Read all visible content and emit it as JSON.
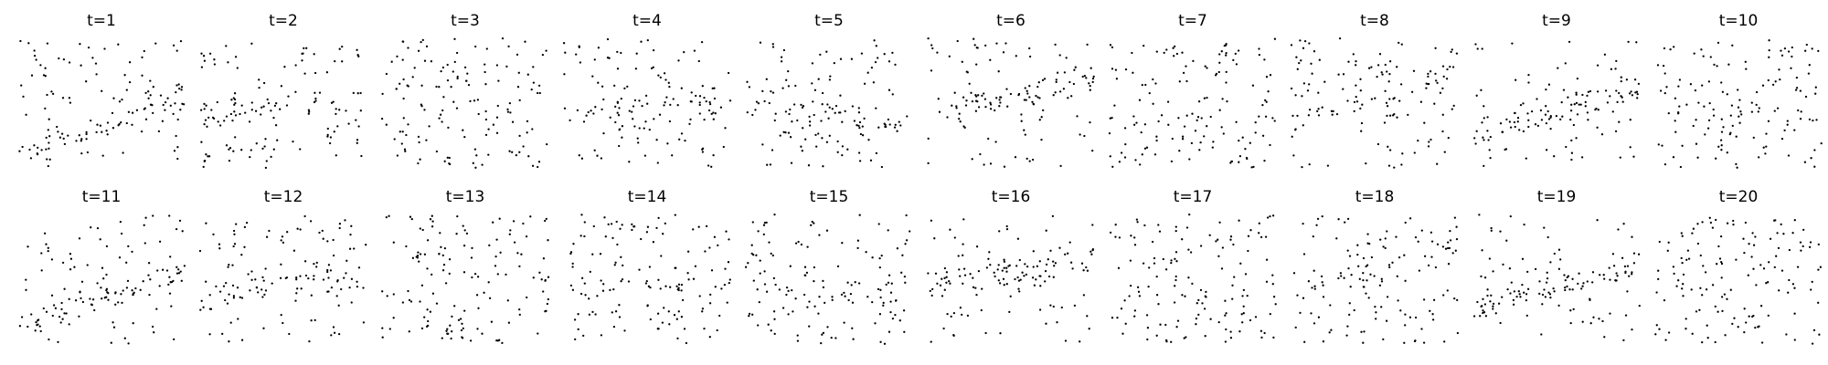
{
  "chart_data": {
    "type": "scatter",
    "grid": false,
    "axes_visible": false,
    "layout": {
      "rows": 2,
      "cols": 10
    },
    "marker_color": "#000000",
    "points_per_panel": 140,
    "xlim": [
      0,
      1
    ],
    "ylim": [
      0,
      1
    ],
    "panels": [
      {
        "title": "t=1"
      },
      {
        "title": "t=2"
      },
      {
        "title": "t=3"
      },
      {
        "title": "t=4"
      },
      {
        "title": "t=5"
      },
      {
        "title": "t=6"
      },
      {
        "title": "t=7"
      },
      {
        "title": "t=8"
      },
      {
        "title": "t=9"
      },
      {
        "title": "t=10"
      },
      {
        "title": "t=11"
      },
      {
        "title": "t=12"
      },
      {
        "title": "t=13"
      },
      {
        "title": "t=14"
      },
      {
        "title": "t=15"
      },
      {
        "title": "t=16"
      },
      {
        "title": "t=17"
      },
      {
        "title": "t=18"
      },
      {
        "title": "t=19"
      },
      {
        "title": "t=20"
      }
    ]
  }
}
